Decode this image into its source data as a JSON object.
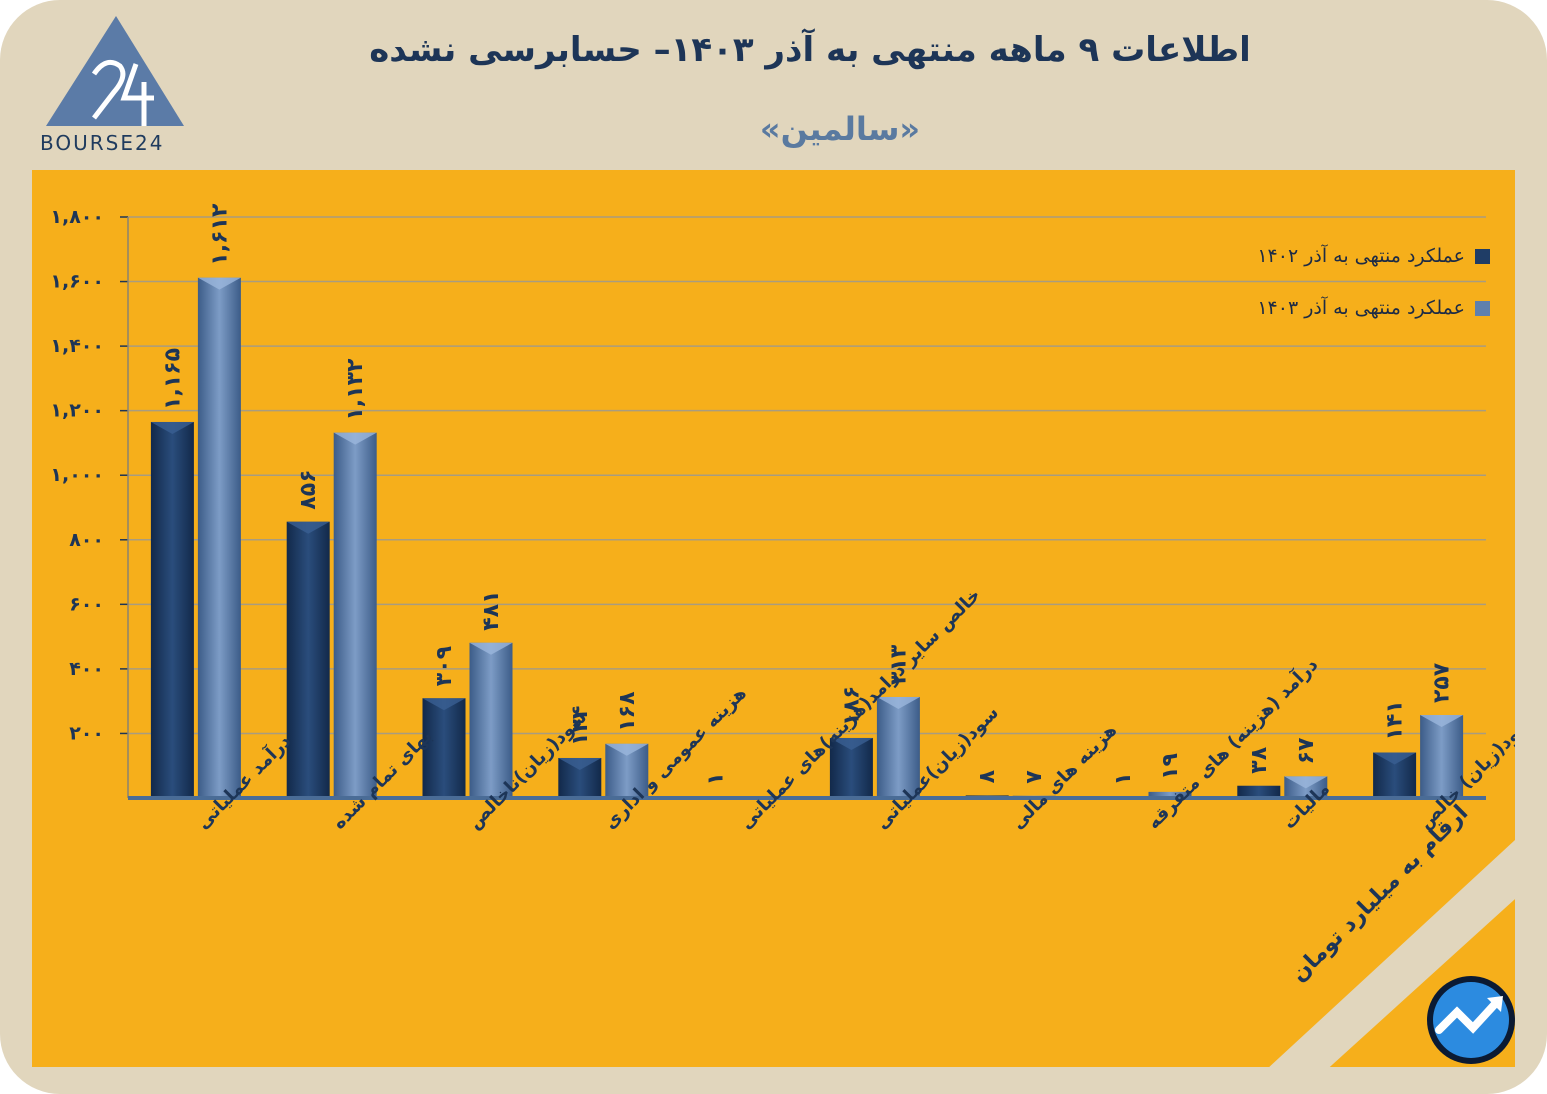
{
  "header": {
    "title": "اطلاعات ۹ ماهه منتهی به آذر ۱۴۰۳– حسابرسی نشده",
    "subtitle": "«سالمین»",
    "logo_text": "BOURSE24"
  },
  "note": "ارقام به میلیارد تومان",
  "colors": {
    "background": "#e1d6bd",
    "panel": "#f6af1b",
    "series_1402": "#1f3d66",
    "series_1403": "#5f80ae",
    "grid": "#a89c80",
    "text": "#1d3557"
  },
  "icons": [
    "bourse24-logo-icon",
    "trend-arrow-icon"
  ],
  "chart_data": {
    "type": "bar",
    "categories": [
      "درآمد عملیاتی",
      "بهای تمام شده",
      "سود(زیان)ناخالص",
      "هزینه عمومی و اداری",
      "خالص سایر درامد(هزینه)های عملیاتی",
      "سود(زیان)عملیاتی",
      "هزینه های مالی",
      "درآمد (هزینه) های متفرقه",
      "مالیات",
      "سود(زیان) خالص"
    ],
    "series": [
      {
        "name": "عملکرد منتهی به آذر ۱۴۰۲",
        "values": [
          1165,
          856,
          309,
          124,
          1,
          186,
          8,
          1,
          38,
          141
        ],
        "labels": [
          "۱,۱۶۵",
          "۸۵۶",
          "۳۰۹",
          "۱۲۴",
          "۱",
          "۱۸۶",
          "۸",
          "۱",
          "۳۸",
          "۱۴۱"
        ]
      },
      {
        "name": "عملکرد منتهی به آذر ۱۴۰۳",
        "values": [
          1612,
          1132,
          481,
          168,
          0,
          313,
          7,
          19,
          67,
          257
        ],
        "labels": [
          "۱,۶۱۲",
          "۱,۱۳۲",
          "۴۸۱",
          "۱۶۸",
          "",
          "۳۱۳",
          "۷",
          "۱۹",
          "۶۷",
          "۲۵۷"
        ]
      }
    ],
    "yticks": [
      200,
      400,
      600,
      800,
      1000,
      1200,
      1400,
      1600,
      1800
    ],
    "ytick_labels": [
      "۲۰۰",
      "۴۰۰",
      "۶۰۰",
      "۸۰۰",
      "۱,۰۰۰",
      "۱,۲۰۰",
      "۱,۴۰۰",
      "۱,۶۰۰",
      "۱,۸۰۰"
    ],
    "ylim": [
      0,
      1800
    ],
    "grid": true,
    "legend": "top-right"
  }
}
